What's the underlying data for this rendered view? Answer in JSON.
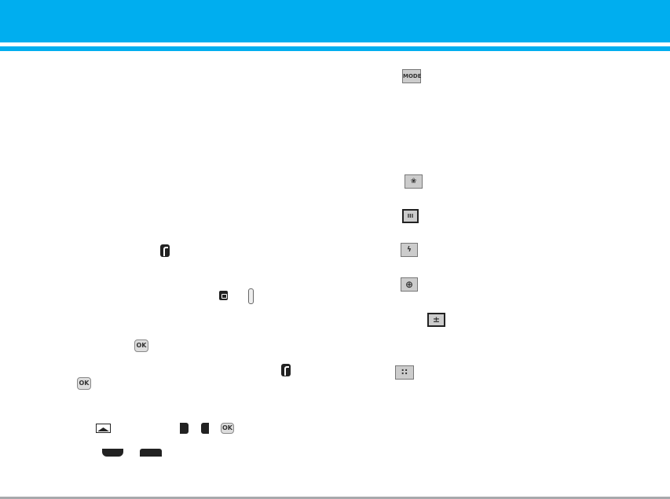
{
  "colors": {
    "header": "#00aeef",
    "footer_rule": "#a7a9ac"
  },
  "left_icons": [
    {
      "name": "r-key-icon"
    },
    {
      "name": "camera-key-icon"
    },
    {
      "name": "side-key-icon"
    },
    {
      "name": "ok-key-icon",
      "label": "OK"
    },
    {
      "name": "r-key-icon"
    },
    {
      "name": "ok-key-icon",
      "label": "OK"
    },
    {
      "name": "landscape-icon"
    },
    {
      "name": "soft-key-icon"
    },
    {
      "name": "soft-key-icon"
    },
    {
      "name": "ok-key-icon",
      "label": "OK"
    },
    {
      "name": "left-softkey-icon"
    },
    {
      "name": "right-softkey-icon"
    }
  ],
  "right_icons": [
    {
      "name": "mode-icon",
      "label": "MODE"
    },
    {
      "name": "scene-icon",
      "glyph": "❀"
    },
    {
      "name": "battery-icon",
      "glyph": "III"
    },
    {
      "name": "flash-icon",
      "glyph": "ϟ"
    },
    {
      "name": "zoom-icon",
      "glyph": "⊕"
    },
    {
      "name": "exposure-icon",
      "glyph": "±"
    },
    {
      "name": "resolution-icon",
      "glyph": "∷"
    }
  ]
}
